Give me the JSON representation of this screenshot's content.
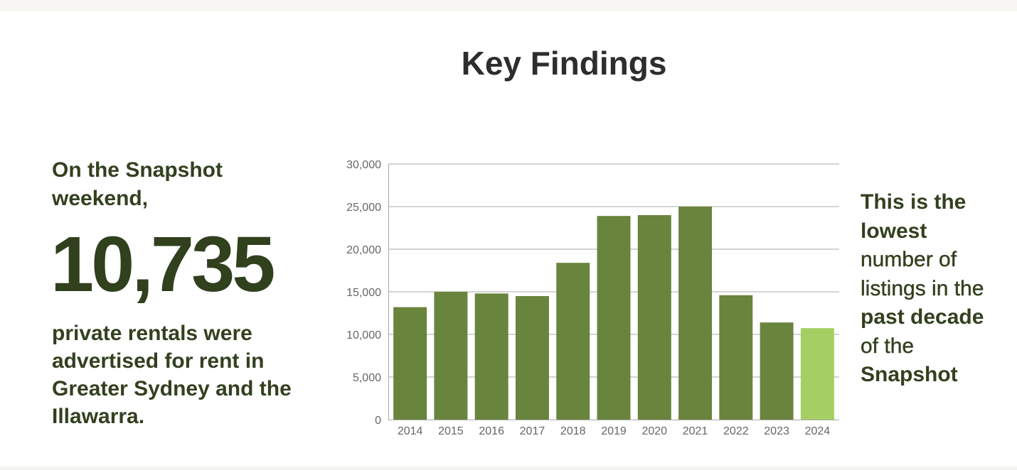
{
  "page": {
    "title": "Key Findings"
  },
  "left": {
    "lead": "On the Snapshot weekend,",
    "number": "10,735",
    "description": "private rentals were advertised for rent in Greater Sydney and the Illawarra."
  },
  "right": {
    "line1": "This is the",
    "line2": "lowest",
    "line3": "number of",
    "line4": "listings in the",
    "line5": "past decade",
    "line6": "of the",
    "line7": "Snapshot"
  },
  "chart_data": {
    "type": "bar",
    "categories": [
      "2014",
      "2015",
      "2016",
      "2017",
      "2018",
      "2019",
      "2020",
      "2021",
      "2022",
      "2023",
      "2024"
    ],
    "values": [
      13200,
      15000,
      14800,
      14500,
      18400,
      23900,
      24000,
      25000,
      14600,
      11400,
      10735
    ],
    "ylim": [
      0,
      30000
    ],
    "yticks": [
      0,
      5000,
      10000,
      15000,
      20000,
      25000,
      30000
    ],
    "ytick_labels": [
      "0",
      "5,000",
      "10,000",
      "15,000",
      "20,000",
      "25,000",
      "30,000"
    ],
    "grid": true,
    "bar_color": "#69843c",
    "highlight_color": "#a5cf63",
    "highlight_category": "2024",
    "title": "",
    "xlabel": "",
    "ylabel": ""
  }
}
